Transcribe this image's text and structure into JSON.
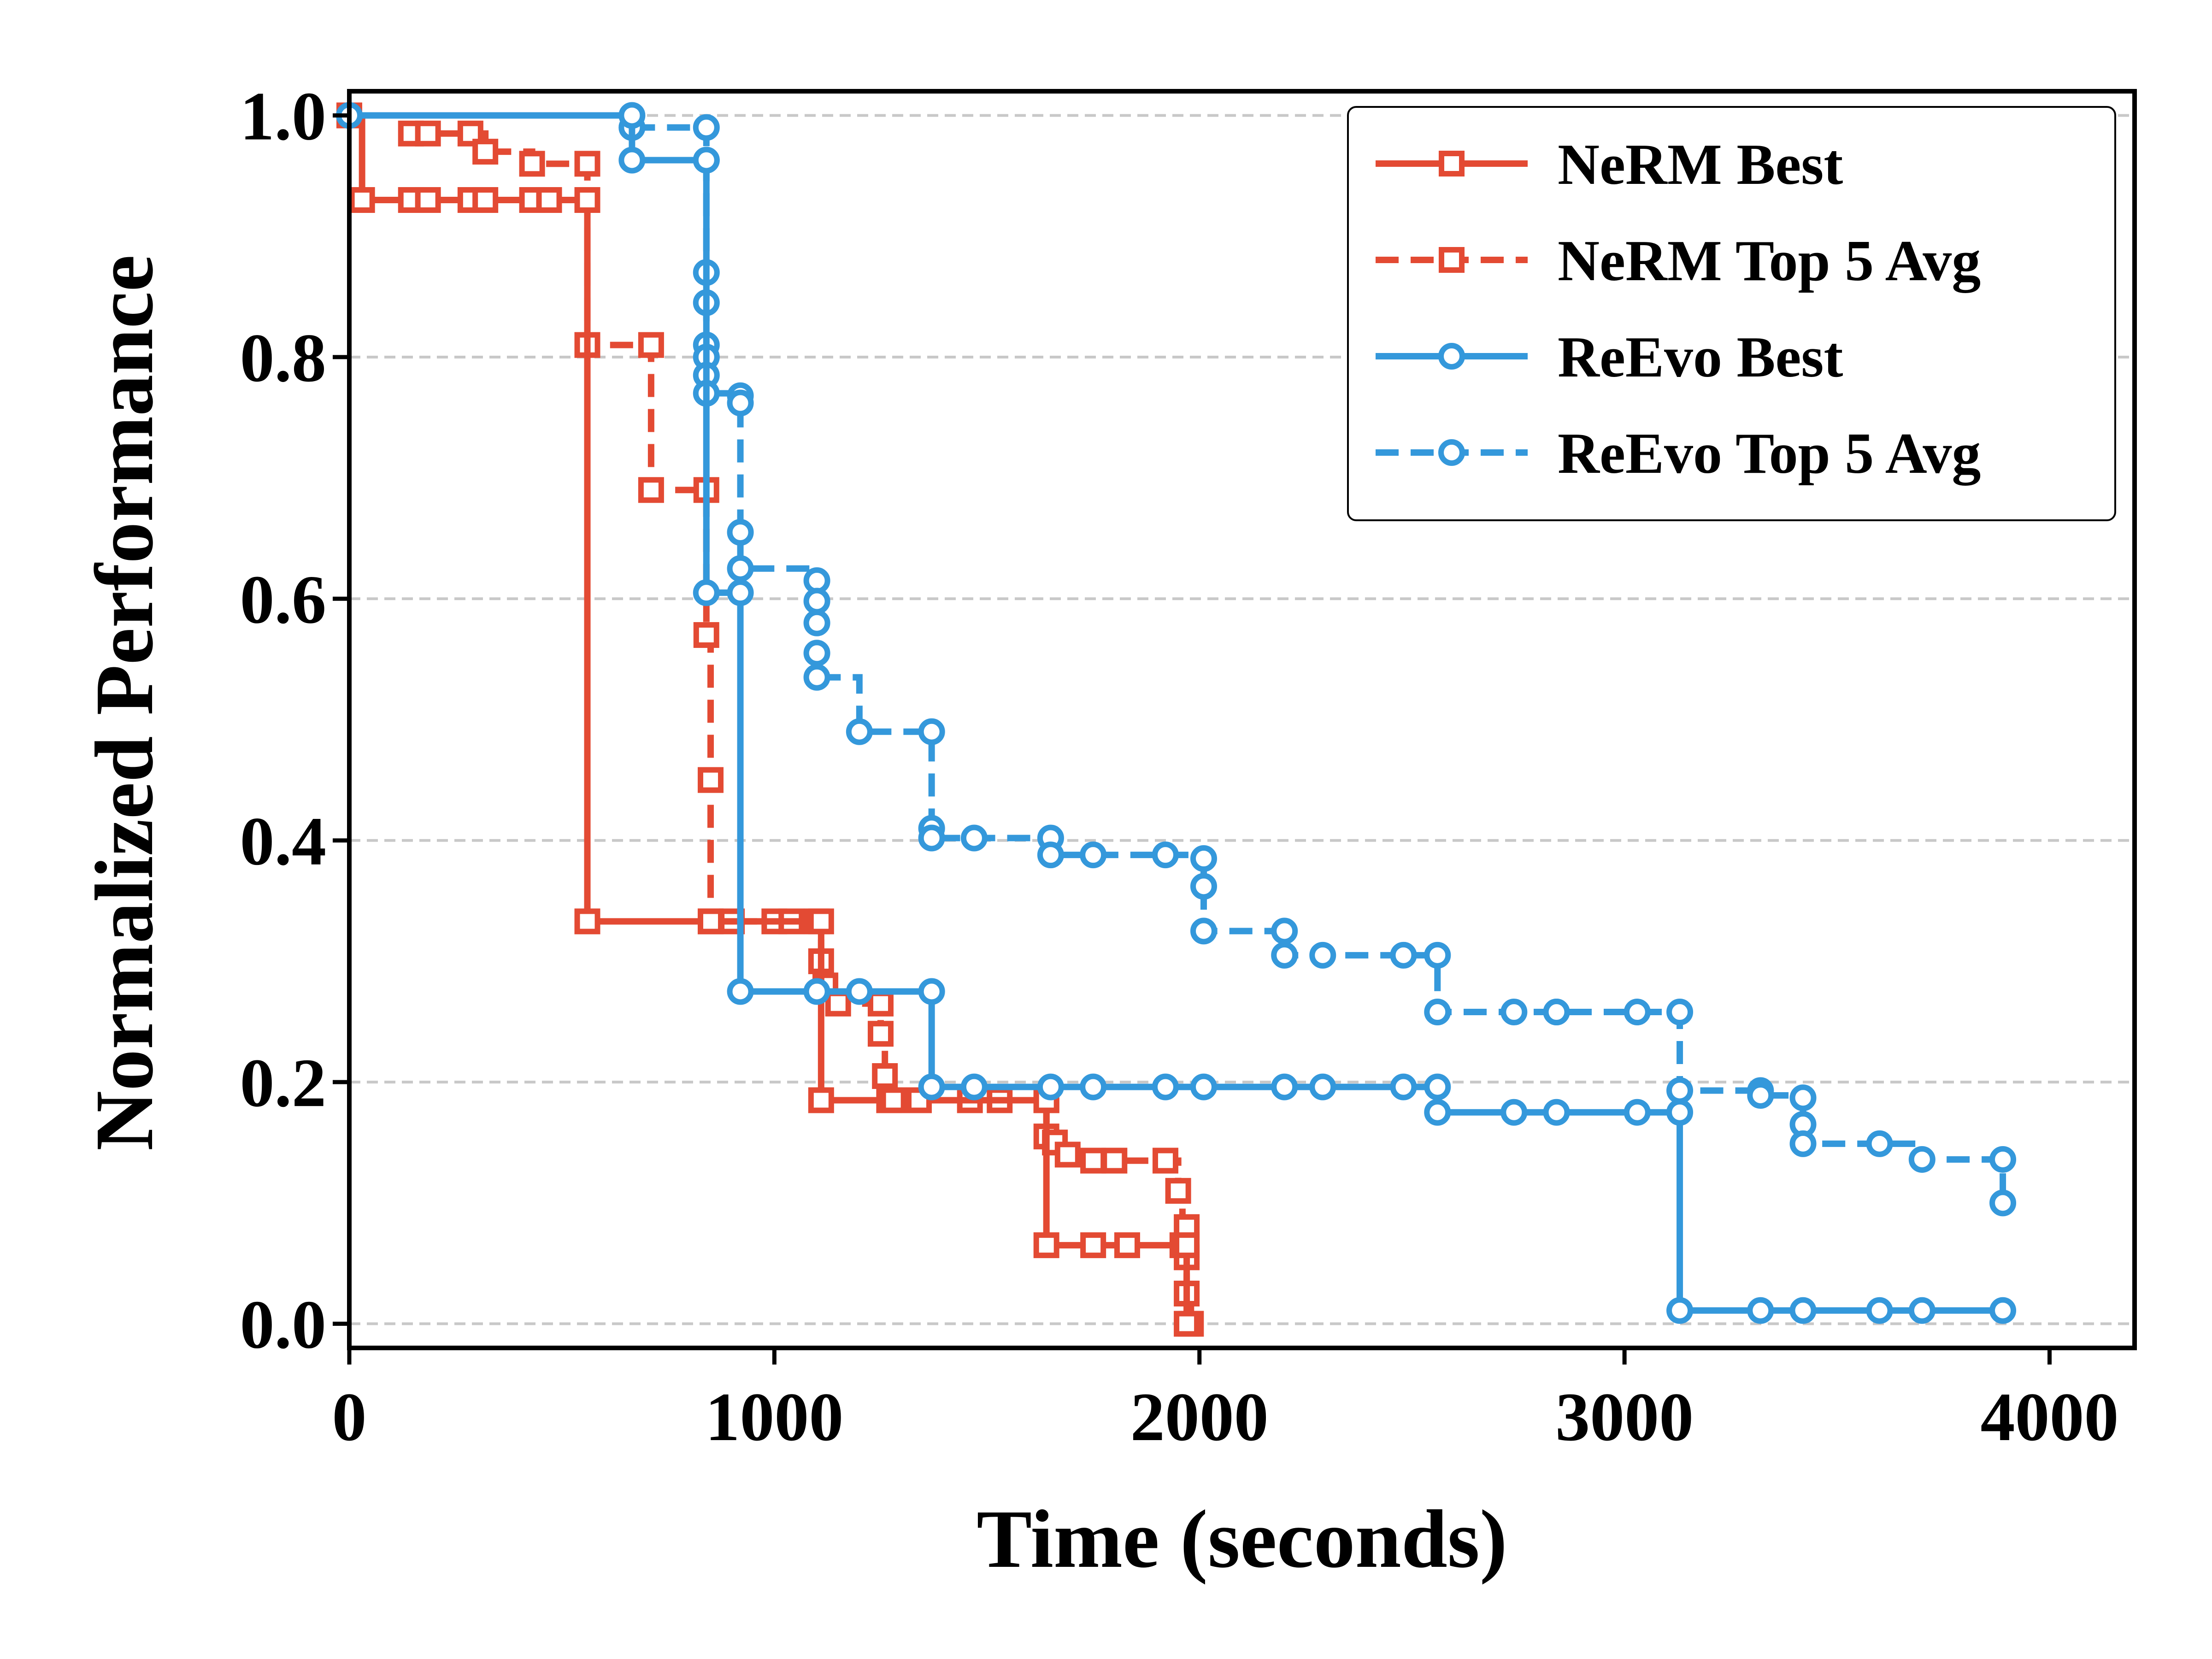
{
  "chart_data": {
    "type": "line",
    "step": "post",
    "xlabel": "Time (seconds)",
    "ylabel": "Normalized Performance",
    "xlim": [
      0,
      4200
    ],
    "ylim": [
      -0.02,
      1.02
    ],
    "xticks": [
      0,
      1000,
      2000,
      3000,
      4000
    ],
    "xtick_labels": [
      "0",
      "1000",
      "2000",
      "3000",
      "4000"
    ],
    "yticks": [
      0.0,
      0.2,
      0.4,
      0.6,
      0.8,
      1.0
    ],
    "ytick_labels": [
      "0.0",
      "0.2",
      "0.4",
      "0.6",
      "0.8",
      "1.0"
    ],
    "grid": "horizontal dashed",
    "legend_position": "top-right",
    "series": [
      {
        "name": "NeRM Best",
        "color": "#E34A33",
        "line": "solid",
        "marker": "square",
        "x": [
          0,
          30,
          145,
          185,
          285,
          320,
          430,
          470,
          560,
          560,
          850,
          1110,
          1110,
          1280,
          1340,
          1640,
          1640,
          1750,
          1830,
          1970,
          1970
        ],
        "y": [
          1.0,
          0.93,
          0.93,
          0.93,
          0.93,
          0.93,
          0.93,
          0.93,
          0.93,
          0.333,
          0.333,
          0.333,
          0.185,
          0.185,
          0.185,
          0.185,
          0.065,
          0.065,
          0.065,
          0.065,
          0.0
        ]
      },
      {
        "name": "NeRM Top 5 Avg",
        "color": "#E34A33",
        "line": "dashed",
        "marker": "square",
        "x": [
          0,
          145,
          185,
          285,
          320,
          430,
          560,
          560,
          710,
          710,
          840,
          840,
          850,
          850,
          900,
          1000,
          1040,
          1100,
          1110,
          1120,
          1150,
          1250,
          1250,
          1260,
          1270,
          1460,
          1530,
          1640,
          1640,
          1660,
          1690,
          1750,
          1800,
          1920,
          1950,
          1960,
          1970,
          1970,
          1970,
          1980
        ],
        "y": [
          1.0,
          0.985,
          0.985,
          0.985,
          0.97,
          0.96,
          0.96,
          0.81,
          0.81,
          0.69,
          0.69,
          0.57,
          0.45,
          0.333,
          0.333,
          0.333,
          0.333,
          0.333,
          0.3,
          0.28,
          0.265,
          0.265,
          0.24,
          0.205,
          0.185,
          0.185,
          0.185,
          0.185,
          0.155,
          0.15,
          0.14,
          0.135,
          0.135,
          0.135,
          0.11,
          0.065,
          0.08,
          0.055,
          0.025,
          0.0
        ]
      },
      {
        "name": "ReEvo Best",
        "color": "#3498DB",
        "line": "solid",
        "marker": "circle",
        "x": [
          0,
          665,
          665,
          840,
          840,
          920,
          920,
          1100,
          1200,
          1370,
          1370,
          1470,
          1650,
          1750,
          1920,
          2010,
          2200,
          2290,
          2480,
          2560,
          2560,
          2740,
          2840,
          3030,
          3130,
          3130,
          3320,
          3420,
          3600,
          3700,
          3890
        ],
        "y": [
          1.0,
          1.0,
          0.963,
          0.963,
          0.605,
          0.605,
          0.275,
          0.275,
          0.275,
          0.275,
          0.196,
          0.196,
          0.196,
          0.196,
          0.196,
          0.196,
          0.196,
          0.196,
          0.196,
          0.196,
          0.175,
          0.175,
          0.175,
          0.175,
          0.175,
          0.011,
          0.011,
          0.011,
          0.011,
          0.011,
          0.011
        ]
      },
      {
        "name": "ReEvo Top 5 Avg",
        "color": "#3498DB",
        "line": "dashed",
        "marker": "circle",
        "x": [
          665,
          665,
          840,
          840,
          840,
          840,
          840,
          840,
          840,
          840,
          920,
          920,
          920,
          920,
          1100,
          1100,
          1100,
          1100,
          1100,
          1200,
          1370,
          1370,
          1370,
          1470,
          1650,
          1650,
          1750,
          1920,
          2010,
          2010,
          2010,
          2200,
          2200,
          2290,
          2480,
          2560,
          2560,
          2740,
          2840,
          2840,
          3030,
          3130,
          3130,
          3320,
          3320,
          3420,
          3420,
          3420,
          3600,
          3700,
          3890,
          3890
        ],
        "y": [
          0.99,
          0.99,
          0.99,
          0.963,
          0.87,
          0.845,
          0.81,
          0.8,
          0.785,
          0.77,
          0.768,
          0.762,
          0.655,
          0.625,
          0.615,
          0.598,
          0.58,
          0.555,
          0.535,
          0.49,
          0.49,
          0.41,
          0.402,
          0.402,
          0.402,
          0.388,
          0.388,
          0.388,
          0.385,
          0.362,
          0.325,
          0.325,
          0.305,
          0.305,
          0.305,
          0.305,
          0.258,
          0.258,
          0.258,
          0.258,
          0.258,
          0.258,
          0.193,
          0.193,
          0.189,
          0.187,
          0.165,
          0.149,
          0.149,
          0.136,
          0.136,
          0.1
        ]
      }
    ]
  },
  "legend": {
    "items": [
      {
        "label": "NeRM Best",
        "color": "#E34A33",
        "line": "solid",
        "marker": "square"
      },
      {
        "label": "NeRM Top 5 Avg",
        "color": "#E34A33",
        "line": "dashed",
        "marker": "square"
      },
      {
        "label": "ReEvo Best",
        "color": "#3498DB",
        "line": "solid",
        "marker": "circle"
      },
      {
        "label": "ReEvo Top 5 Avg",
        "color": "#3498DB",
        "line": "dashed",
        "marker": "circle"
      }
    ]
  }
}
